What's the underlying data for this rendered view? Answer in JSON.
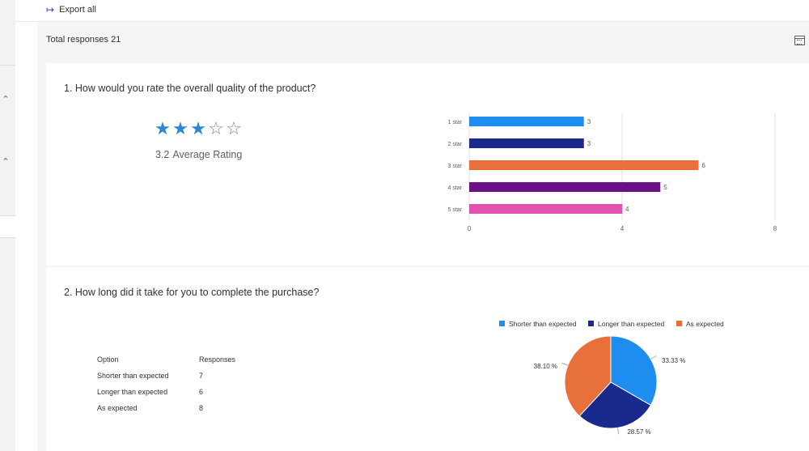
{
  "toolbar": {
    "export_label": "Export all",
    "export_icon": "export-arrow-icon"
  },
  "summary": {
    "total_responses_label": "Total responses 21"
  },
  "icons": {
    "calendar": "calendar-icon",
    "collapse": "chevron-up-icon"
  },
  "colors": {
    "accent": "#3b3eaa",
    "star": "#2f86d6"
  },
  "q1": {
    "title": "1. How would you rate the overall quality of the product?",
    "rating_value": "3.2",
    "rating_label": "Average Rating",
    "stars_filled": 3,
    "stars_total": 5
  },
  "q2": {
    "title": "2. How long did it take for you to complete the purchase?",
    "table": {
      "header_option": "Option",
      "header_responses": "Responses",
      "rows": [
        {
          "option": "Shorter than expected",
          "responses": "7"
        },
        {
          "option": "Longer than expected",
          "responses": "6"
        },
        {
          "option": "As expected",
          "responses": "8"
        }
      ]
    }
  },
  "chart_data": [
    {
      "type": "bar",
      "orientation": "horizontal",
      "categories": [
        "1 star",
        "2 star",
        "3 star",
        "4 star",
        "5 star"
      ],
      "values": [
        3,
        3,
        6,
        5,
        4
      ],
      "colors": [
        "#1d8ef0",
        "#1a2a8c",
        "#e8703a",
        "#6d0f86",
        "#e452b0"
      ],
      "xlim": [
        0,
        8
      ],
      "xticks": [
        "0",
        "4",
        "8"
      ],
      "data_labels": [
        "3",
        "3",
        "6",
        "5",
        "4"
      ],
      "grid": true
    },
    {
      "type": "pie",
      "categories": [
        "Shorter than expected",
        "Longer than expected",
        "As expected"
      ],
      "values": [
        33.33,
        28.57,
        38.1
      ],
      "labels": [
        "33.33 %",
        "28.57 %",
        "38.10 %"
      ],
      "colors": [
        "#1d8ef0",
        "#1a2a8c",
        "#e8703a"
      ],
      "legend": "top"
    }
  ]
}
